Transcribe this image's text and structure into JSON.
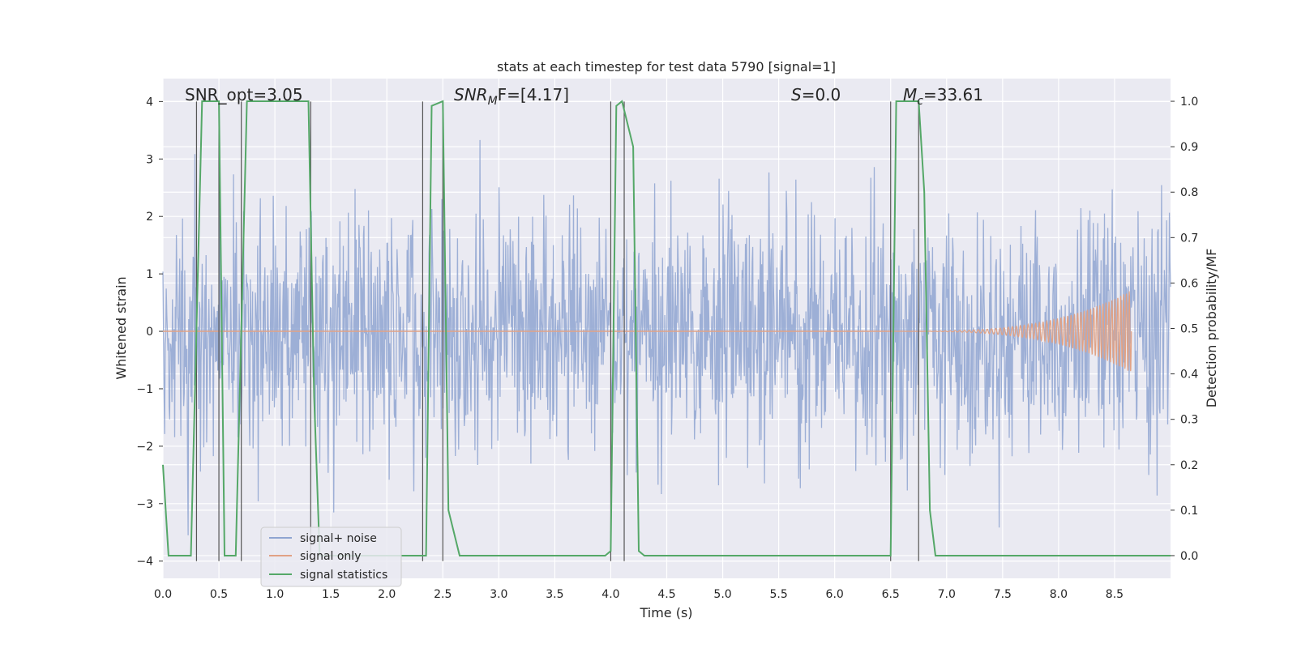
{
  "chart_data": {
    "type": "line",
    "title": "stats at each timestep for test data 5790 [signal=1]",
    "xlabel": "Time (s)",
    "ylabel": "Whitened strain",
    "y2label": "Detection probability/MF",
    "xlim": [
      0.0,
      9.0
    ],
    "ylim": [
      -4.3,
      4.4
    ],
    "y2lim": [
      -0.05,
      1.05
    ],
    "xticks": [
      "0.0",
      "0.5",
      "1.0",
      "1.5",
      "2.0",
      "2.5",
      "3.0",
      "3.5",
      "4.0",
      "4.5",
      "5.0",
      "5.5",
      "6.0",
      "6.5",
      "7.0",
      "7.5",
      "8.0",
      "8.5"
    ],
    "yticks": [
      "−4",
      "−3",
      "−2",
      "−1",
      "0",
      "1",
      "2",
      "3",
      "4"
    ],
    "y2ticks": [
      "0.0",
      "0.1",
      "0.2",
      "0.3",
      "0.4",
      "0.5",
      "0.6",
      "0.7",
      "0.8",
      "0.9",
      "1.0"
    ],
    "grid": true,
    "legend_position": "lower-left",
    "annotations": {
      "snr_opt": "SNR_opt=3.05",
      "snr_mf_base": "SNR",
      "snr_mf_sub": "M",
      "snr_mf_rest": "F=[4.17]",
      "s_var": "S",
      "s_rest": "=0.0",
      "mc_var": "M",
      "mc_sub": "c",
      "mc_rest": "=33.61"
    },
    "series": [
      {
        "name": "signal+ noise",
        "color": "#8fa5d1",
        "description_values": "noise band approx ±2.2 with spikes up to ±3.5"
      },
      {
        "name": "signal only",
        "color": "#e1a285",
        "chirp": {
          "start_t": 6.5,
          "end_t": 8.65,
          "peak_amplitude": 0.72
        }
      },
      {
        "name": "signal statistics",
        "color": "#55a868",
        "x": [
          0.0,
          0.05,
          0.25,
          0.3,
          0.35,
          0.4,
          0.5,
          0.55,
          0.65,
          0.7,
          0.75,
          1.0,
          1.3,
          1.35,
          1.4,
          1.45,
          2.2,
          2.3,
          2.35,
          2.4,
          2.5,
          2.55,
          2.65,
          2.8,
          3.0,
          3.95,
          4.0,
          4.05,
          4.1,
          4.2,
          4.25,
          4.3,
          6.5,
          6.55,
          6.6,
          6.75,
          6.8,
          6.85,
          6.9,
          9.0
        ],
        "values": [
          0.2,
          0.0,
          0.0,
          0.5,
          1.0,
          1.0,
          1.0,
          0.0,
          0.0,
          0.5,
          1.0,
          1.0,
          1.0,
          0.35,
          0.0,
          0.0,
          0.0,
          0.0,
          0.0,
          0.99,
          1.0,
          0.1,
          0.0,
          0.0,
          0.0,
          0.0,
          0.01,
          0.99,
          1.0,
          0.9,
          0.01,
          0.0,
          0.0,
          1.0,
          1.0,
          1.0,
          0.8,
          0.1,
          0.0,
          0.0
        ]
      }
    ],
    "event_lines_x": [
      0.3,
      0.5,
      0.7,
      1.32,
      2.32,
      2.5,
      4.0,
      4.12,
      6.5,
      6.75
    ],
    "colors": {
      "background": "#eaeaf2",
      "grid": "#ffffff",
      "event_line": "#555555"
    }
  }
}
